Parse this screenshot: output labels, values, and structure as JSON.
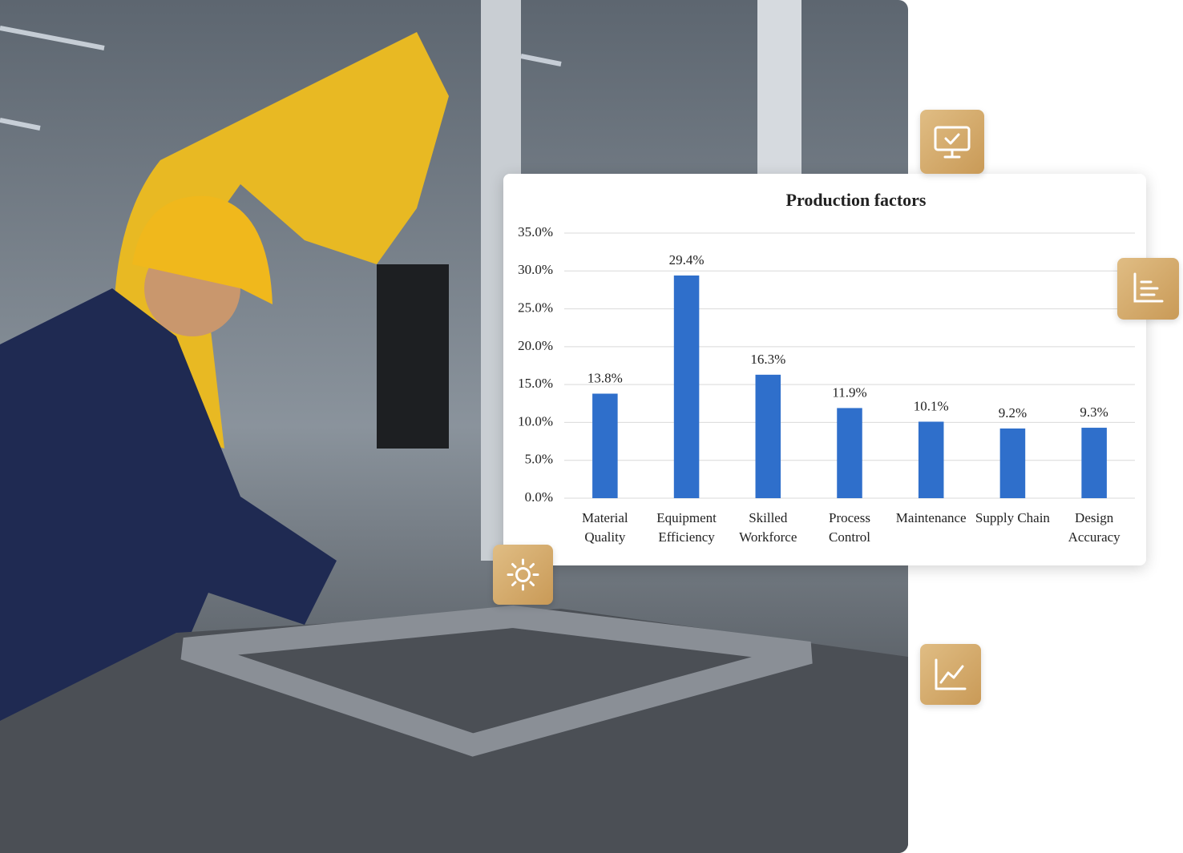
{
  "chart_data": {
    "type": "bar",
    "title": "Production factors",
    "categories": [
      "Material Quality",
      "Equipment Efficiency",
      "Skilled Workforce",
      "Process Control",
      "Maintenance",
      "Supply Chain",
      "Design Accuracy"
    ],
    "values": [
      13.8,
      29.4,
      16.3,
      11.9,
      10.1,
      9.2,
      9.3
    ],
    "value_labels": [
      "13.8%",
      "29.4%",
      "16.3%",
      "11.9%",
      "10.1%",
      "9.2%",
      "9.3%"
    ],
    "color": "#2f6fcb",
    "ylim": [
      0,
      35
    ],
    "yticks": [
      {
        "value": 0,
        "label": "0.0%"
      },
      {
        "value": 5,
        "label": "5.0%"
      },
      {
        "value": 10,
        "label": "10.0%"
      },
      {
        "value": 15,
        "label": "15.0%"
      },
      {
        "value": 20,
        "label": "20.0%"
      },
      {
        "value": 25,
        "label": "25.0%"
      },
      {
        "value": 30,
        "label": "30.0%"
      },
      {
        "value": 35,
        "label": "35.0%"
      }
    ],
    "grid": true
  }
}
